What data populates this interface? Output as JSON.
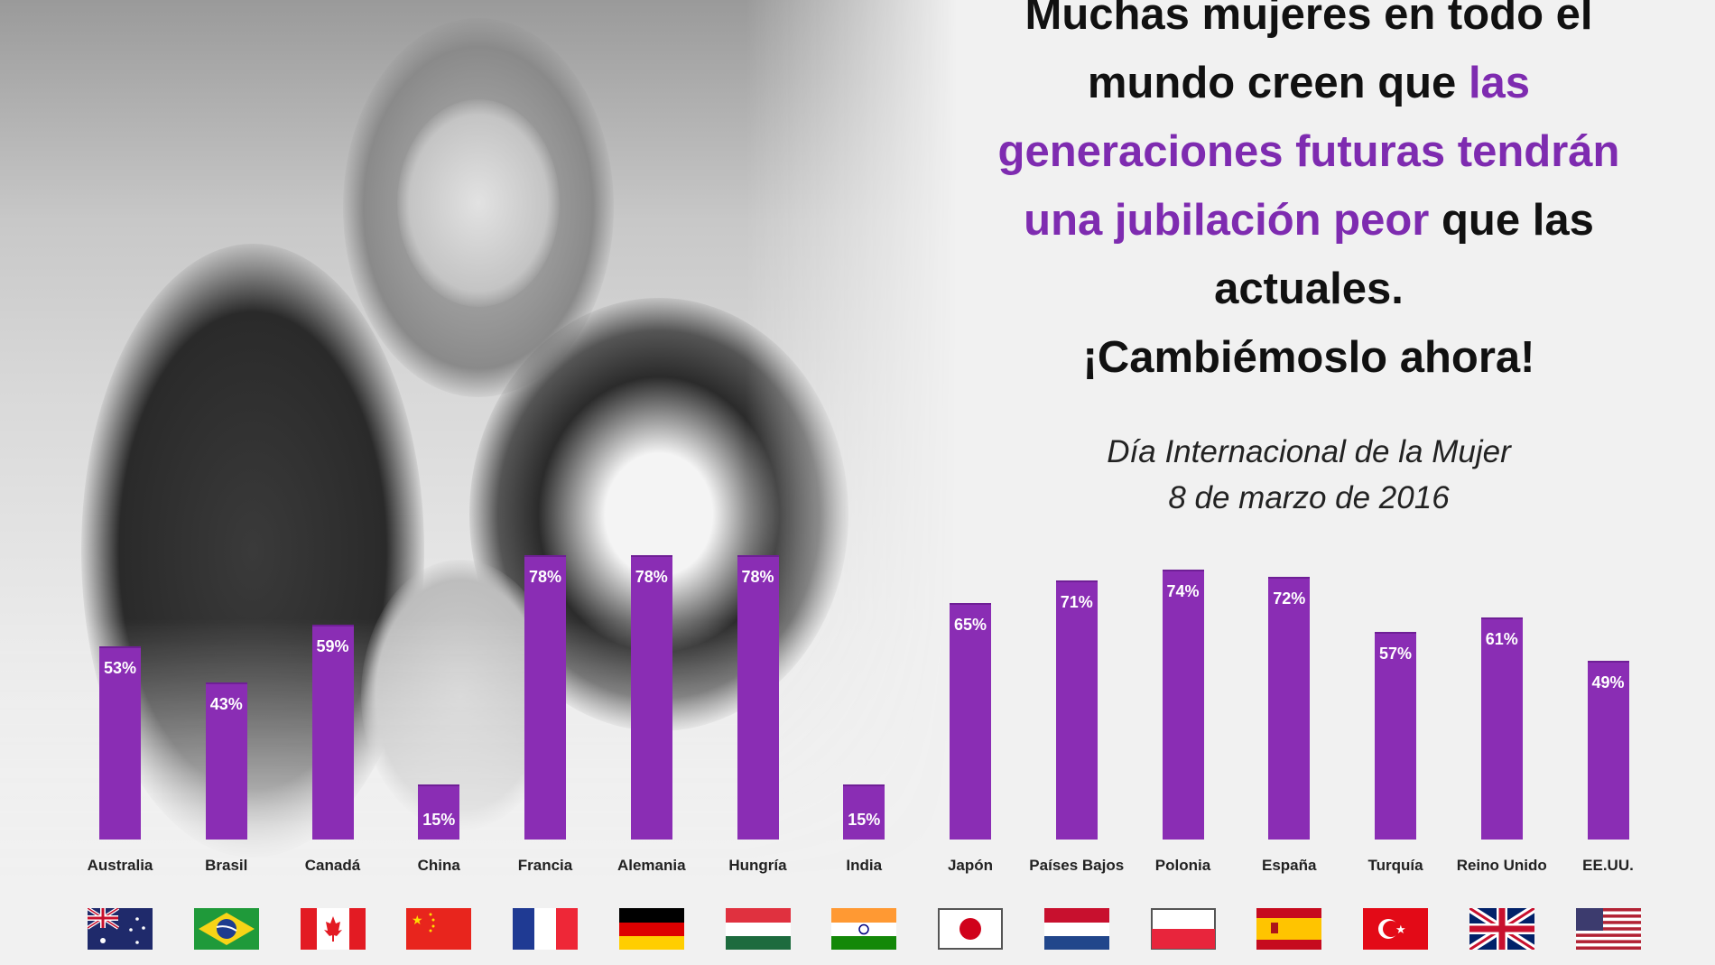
{
  "title": {
    "line1": "Muchas mujeres en todo el",
    "line2_plain": "mundo creen que ",
    "line2_highlight": "las",
    "line3_highlight": "generaciones futuras tendrán",
    "line4_highlight": "una jubilación peor",
    "line4_plain": " que las",
    "line5": "actuales.",
    "line6": "¡Cambiémoslo ahora!"
  },
  "subtitle": {
    "line1": "Día Internacional de la Mujer",
    "line2": "8 de marzo de 2016"
  },
  "colors": {
    "bar": "#8a2db4",
    "highlight_text": "#7e2bb0",
    "background": "#f1f1f1"
  },
  "chart_data": {
    "type": "bar",
    "categories": [
      "Australia",
      "Brasil",
      "Canadá",
      "China",
      "Francia",
      "Alemania",
      "Hungría",
      "India",
      "Japón",
      "Países Bajos",
      "Polonia",
      "España",
      "Turquía",
      "Reino Unido",
      "EE.UU."
    ],
    "values": [
      53,
      43,
      59,
      15,
      78,
      78,
      78,
      15,
      65,
      71,
      74,
      72,
      57,
      61,
      49
    ],
    "data_labels": [
      "53%",
      "43%",
      "59%",
      "15%",
      "78%",
      "78%",
      "78%",
      "15%",
      "65%",
      "71%",
      "74%",
      "72%",
      "57%",
      "61%",
      "49%"
    ],
    "unit": "%",
    "ylim": [
      0,
      80
    ],
    "grid": false,
    "legend": "none",
    "flag_icons": [
      "australia-flag",
      "brazil-flag",
      "canada-flag",
      "china-flag",
      "france-flag",
      "germany-flag",
      "hungary-flag",
      "india-flag",
      "japan-flag",
      "netherlands-flag",
      "poland-flag",
      "spain-flag",
      "turkey-flag",
      "uk-flag",
      "usa-flag"
    ]
  }
}
